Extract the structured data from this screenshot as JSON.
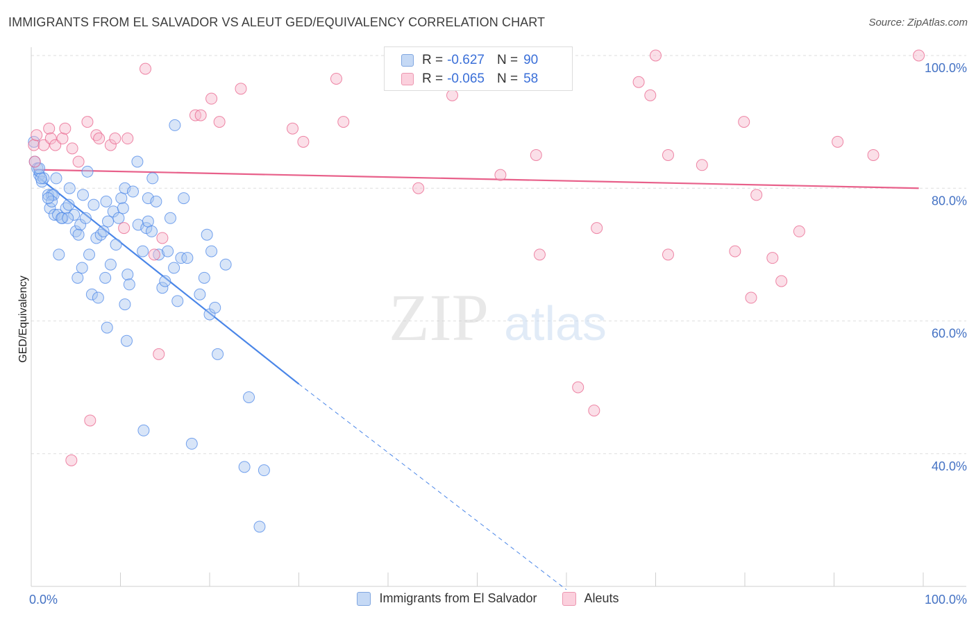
{
  "header": {
    "title": "IMMIGRANTS FROM EL SALVADOR VS ALEUT GED/EQUIVALENCY CORRELATION CHART",
    "source": "Source: ZipAtlas.com"
  },
  "watermark": {
    "zip": "ZIP",
    "atlas": "atlas"
  },
  "legend": {
    "rows": [
      {
        "r_label": "R = ",
        "r_value": "-0.627",
        "n_label": "N = ",
        "n_value": "90",
        "color": "#a9c6f0"
      },
      {
        "r_label": "R = ",
        "r_value": "-0.065",
        "n_label": "N = ",
        "n_value": "58",
        "color": "#f6b8cb"
      }
    ]
  },
  "bottom_legend": [
    {
      "label": "Immigrants from El Salvador",
      "color": "#a9c6f0"
    },
    {
      "label": "Aleuts",
      "color": "#f6b8cb"
    }
  ],
  "chart_data": {
    "type": "scatter",
    "ylabel": "GED/Equivalency",
    "xlim": [
      0,
      100
    ],
    "ylim": [
      20,
      100
    ],
    "x_tick_labels": [
      "0.0%",
      "100.0%"
    ],
    "y_ticks": [
      {
        "value": 100,
        "label": "100.0%"
      },
      {
        "value": 80,
        "label": "80.0%"
      },
      {
        "value": 60,
        "label": "60.0%"
      },
      {
        "value": 40,
        "label": "40.0%"
      }
    ],
    "grid": true,
    "series": [
      {
        "name": "Immigrants from El Salvador",
        "color": "#4a86e8",
        "fill": "#a9c6f0",
        "trend": {
          "x0": 0.3,
          "y0": 82.2,
          "x1": 30,
          "y1": 50.5,
          "dash_x1": 60,
          "dash_y1": 19.5
        },
        "points": [
          [
            0.3,
            87
          ],
          [
            0.4,
            84
          ],
          [
            0.7,
            83
          ],
          [
            0.9,
            82
          ],
          [
            1.2,
            81
          ],
          [
            1.4,
            81.5
          ],
          [
            1.9,
            79
          ],
          [
            2.3,
            79
          ],
          [
            2.1,
            77
          ],
          [
            2.5,
            79
          ],
          [
            2.6,
            76
          ],
          [
            3.0,
            76
          ],
          [
            2.8,
            81.5
          ],
          [
            3.5,
            75.5
          ],
          [
            3.9,
            77
          ],
          [
            4.2,
            77.5
          ],
          [
            4.3,
            80
          ],
          [
            5.0,
            73.5
          ],
          [
            4.8,
            76
          ],
          [
            5.5,
            74.5
          ],
          [
            5.3,
            73
          ],
          [
            5.8,
            79
          ],
          [
            6.1,
            75.5
          ],
          [
            6.3,
            82.5
          ],
          [
            7.0,
            77.5
          ],
          [
            7.3,
            72.5
          ],
          [
            7.8,
            73
          ],
          [
            8.1,
            73.5
          ],
          [
            8.4,
            78
          ],
          [
            8.6,
            75
          ],
          [
            8.9,
            68.5
          ],
          [
            9.2,
            76.5
          ],
          [
            9.5,
            71.5
          ],
          [
            9.8,
            75.5
          ],
          [
            10.1,
            78.5
          ],
          [
            10.3,
            77
          ],
          [
            10.5,
            80
          ],
          [
            10.8,
            67
          ],
          [
            11.0,
            65.5
          ],
          [
            11.4,
            79.5
          ],
          [
            11.9,
            84
          ],
          [
            12.0,
            74.5
          ],
          [
            12.5,
            70.5
          ],
          [
            12.9,
            74
          ],
          [
            13.1,
            75
          ],
          [
            13.1,
            78.5
          ],
          [
            13.5,
            73.5
          ],
          [
            14.0,
            78
          ],
          [
            13.6,
            81.5
          ],
          [
            14.3,
            70
          ],
          [
            14.7,
            65
          ],
          [
            15.0,
            66
          ],
          [
            15.3,
            70.5
          ],
          [
            15.6,
            75.5
          ],
          [
            16.0,
            68
          ],
          [
            16.4,
            63
          ],
          [
            16.8,
            69.5
          ],
          [
            17.5,
            69.5
          ],
          [
            17.1,
            78.5
          ],
          [
            18.9,
            64
          ],
          [
            19.4,
            66.5
          ],
          [
            19.7,
            73
          ],
          [
            20.0,
            61
          ],
          [
            20.2,
            70.5
          ],
          [
            20.6,
            62
          ],
          [
            21.8,
            68.5
          ],
          [
            6.5,
            70
          ],
          [
            5.7,
            68
          ],
          [
            5.2,
            66.5
          ],
          [
            6.8,
            64
          ],
          [
            7.5,
            63.5
          ],
          [
            8.3,
            66.5
          ],
          [
            8.5,
            59
          ],
          [
            10.5,
            62.5
          ],
          [
            10.7,
            57
          ],
          [
            12.6,
            43.5
          ],
          [
            16.1,
            89.5
          ],
          [
            18.0,
            41.5
          ],
          [
            20.9,
            55
          ],
          [
            23.9,
            38
          ],
          [
            24.4,
            48.5
          ],
          [
            26.1,
            37.5
          ],
          [
            25.6,
            29
          ],
          [
            1.1,
            81.5
          ],
          [
            3.4,
            75.5
          ],
          [
            4.1,
            75.5
          ],
          [
            3.1,
            70
          ],
          [
            2.3,
            78
          ],
          [
            1.9,
            78.5
          ],
          [
            0.9,
            83
          ]
        ]
      },
      {
        "name": "Aleuts",
        "color": "#e8608a",
        "fill": "#f6b8cb",
        "trend": {
          "x0": 0.3,
          "y0": 82.8,
          "x1": 99.5,
          "y1": 80.0
        },
        "points": [
          [
            0.3,
            86.5
          ],
          [
            0.4,
            84
          ],
          [
            0.6,
            88
          ],
          [
            1.4,
            86.5
          ],
          [
            2.0,
            89
          ],
          [
            2.2,
            87.5
          ],
          [
            2.7,
            86.5
          ],
          [
            3.5,
            87.5
          ],
          [
            3.8,
            89
          ],
          [
            4.6,
            86
          ],
          [
            5.3,
            84
          ],
          [
            6.3,
            90
          ],
          [
            7.3,
            88
          ],
          [
            7.6,
            87.5
          ],
          [
            8.9,
            86.5
          ],
          [
            9.4,
            87.5
          ],
          [
            10.8,
            87.5
          ],
          [
            10.4,
            74
          ],
          [
            12.8,
            98
          ],
          [
            13.8,
            70
          ],
          [
            14.3,
            55
          ],
          [
            14.7,
            72.5
          ],
          [
            18.4,
            91
          ],
          [
            19.0,
            91
          ],
          [
            20.2,
            93.5
          ],
          [
            21.1,
            90
          ],
          [
            23.5,
            95
          ],
          [
            29.3,
            89
          ],
          [
            30.5,
            87
          ],
          [
            34.2,
            96.5
          ],
          [
            35.0,
            90
          ],
          [
            43.4,
            80
          ],
          [
            47.2,
            94
          ],
          [
            52.6,
            82
          ],
          [
            55.2,
            100
          ],
          [
            56.6,
            85
          ],
          [
            57.0,
            70
          ],
          [
            61.3,
            50
          ],
          [
            63.1,
            46.5
          ],
          [
            63.4,
            74
          ],
          [
            68.1,
            96
          ],
          [
            69.4,
            94
          ],
          [
            70.0,
            100
          ],
          [
            71.4,
            85
          ],
          [
            71.4,
            70
          ],
          [
            75.2,
            83.5
          ],
          [
            78.9,
            70.5
          ],
          [
            79.9,
            90
          ],
          [
            80.7,
            63.5
          ],
          [
            81.3,
            79
          ],
          [
            83.1,
            69.5
          ],
          [
            84.1,
            66
          ],
          [
            86.1,
            73.5
          ],
          [
            90.4,
            87
          ],
          [
            94.4,
            85
          ],
          [
            99.5,
            100
          ],
          [
            6.6,
            45
          ],
          [
            4.5,
            39
          ]
        ]
      }
    ]
  }
}
